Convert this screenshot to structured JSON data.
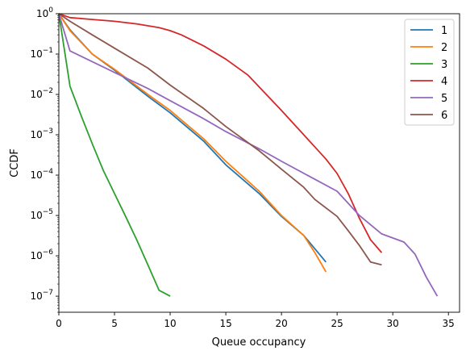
{
  "chart_data": {
    "type": "line",
    "xlabel": "Queue occupancy",
    "ylabel": "CCDF",
    "xlim": [
      0,
      36
    ],
    "ylim": [
      4e-08,
      1
    ],
    "yscale": "log",
    "grid": false,
    "legend_position": "top-right",
    "x_ticks": [
      0,
      5,
      10,
      15,
      20,
      25,
      30,
      35
    ],
    "x_tick_labels": [
      "0",
      "5",
      "10",
      "15",
      "20",
      "25",
      "30",
      "35"
    ],
    "y_ticks": [
      1e-07,
      1e-06,
      1e-05,
      0.0001,
      0.001,
      0.01,
      0.1,
      1
    ],
    "y_tick_labels": [
      {
        "base": "10",
        "exp": "−7"
      },
      {
        "base": "10",
        "exp": "−6"
      },
      {
        "base": "10",
        "exp": "−5"
      },
      {
        "base": "10",
        "exp": "−4"
      },
      {
        "base": "10",
        "exp": "−3"
      },
      {
        "base": "10",
        "exp": "−2"
      },
      {
        "base": "10",
        "exp": "−1"
      },
      {
        "base": "10",
        "exp": "0"
      }
    ],
    "series": [
      {
        "name": "1",
        "color": "#1f77b4",
        "points": [
          [
            0,
            1
          ],
          [
            1,
            0.4
          ],
          [
            3,
            0.1
          ],
          [
            5,
            0.04
          ],
          [
            8,
            0.009
          ],
          [
            10,
            0.0035
          ],
          [
            13,
            0.0007
          ],
          [
            15,
            0.00018
          ],
          [
            18,
            3.5e-05
          ],
          [
            20,
            9.5e-06
          ],
          [
            22,
            3.2e-06
          ],
          [
            23,
            1.5e-06
          ],
          [
            24,
            7e-07
          ]
        ]
      },
      {
        "name": "2",
        "color": "#ff7f0e",
        "points": [
          [
            0,
            1
          ],
          [
            1,
            0.38
          ],
          [
            3,
            0.1
          ],
          [
            5,
            0.042
          ],
          [
            8,
            0.01
          ],
          [
            10,
            0.004
          ],
          [
            13,
            0.0008
          ],
          [
            15,
            0.00022
          ],
          [
            18,
            4e-05
          ],
          [
            20,
            1e-05
          ],
          [
            22,
            3.2e-06
          ],
          [
            23,
            1.2e-06
          ],
          [
            24,
            4e-07
          ]
        ]
      },
      {
        "name": "3",
        "color": "#2ca02c",
        "points": [
          [
            0,
            1
          ],
          [
            1,
            0.016
          ],
          [
            2,
            0.003
          ],
          [
            3,
            0.0006
          ],
          [
            4,
            0.00013
          ],
          [
            5,
            3.5e-05
          ],
          [
            6,
            9.5e-06
          ],
          [
            7,
            2.5e-06
          ],
          [
            8,
            6e-07
          ],
          [
            9,
            1.4e-07
          ],
          [
            10,
            1e-07
          ]
        ]
      },
      {
        "name": "4",
        "color": "#d62728",
        "points": [
          [
            0,
            1
          ],
          [
            1,
            0.8
          ],
          [
            3,
            0.72
          ],
          [
            5,
            0.65
          ],
          [
            7,
            0.56
          ],
          [
            9,
            0.45
          ],
          [
            10,
            0.38
          ],
          [
            11,
            0.3
          ],
          [
            13,
            0.16
          ],
          [
            15,
            0.075
          ],
          [
            17,
            0.03
          ],
          [
            20,
            0.004
          ],
          [
            22,
            0.001
          ],
          [
            24,
            0.00025
          ],
          [
            25,
            0.00011
          ],
          [
            26,
            3.5e-05
          ],
          [
            27,
            8.5e-06
          ],
          [
            28,
            2.5e-06
          ],
          [
            29,
            1.2e-06
          ]
        ]
      },
      {
        "name": "5",
        "color": "#9467bd",
        "points": [
          [
            0,
            1
          ],
          [
            1,
            0.12
          ],
          [
            3,
            0.065
          ],
          [
            5,
            0.035
          ],
          [
            8,
            0.014
          ],
          [
            10,
            0.007
          ],
          [
            13,
            0.0025
          ],
          [
            15,
            0.0012
          ],
          [
            18,
            0.00045
          ],
          [
            20,
            0.00022
          ],
          [
            25,
            4e-05
          ],
          [
            27,
            1e-05
          ],
          [
            29,
            3.5e-06
          ],
          [
            31,
            2.2e-06
          ],
          [
            32,
            1.1e-06
          ],
          [
            33,
            3e-07
          ],
          [
            34,
            1e-07
          ]
        ]
      },
      {
        "name": "6",
        "color": "#8c564b",
        "points": [
          [
            0,
            1
          ],
          [
            1,
            0.65
          ],
          [
            3,
            0.3
          ],
          [
            5,
            0.14
          ],
          [
            8,
            0.045
          ],
          [
            10,
            0.017
          ],
          [
            13,
            0.0045
          ],
          [
            15,
            0.0016
          ],
          [
            18,
            0.0004
          ],
          [
            20,
            0.00014
          ],
          [
            22,
            5e-05
          ],
          [
            23,
            2.5e-05
          ],
          [
            25,
            9.5e-06
          ],
          [
            26,
            4.2e-06
          ],
          [
            27,
            1.8e-06
          ],
          [
            28,
            7e-07
          ],
          [
            29,
            6e-07
          ]
        ]
      }
    ]
  }
}
